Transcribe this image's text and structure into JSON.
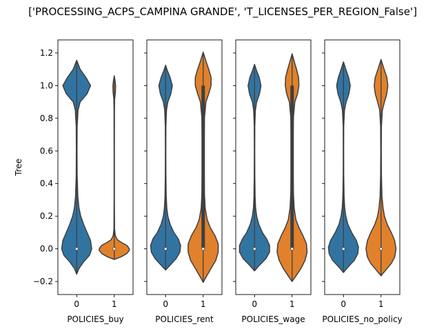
{
  "figure": {
    "title": "['PROCESSING_ACPS_CAMPINA GRANDE', 'T_LICENSES_PER_REGION_False']",
    "ylabel": "Tree"
  },
  "chart_data": {
    "type": "violin",
    "title": "['PROCESSING_ACPS_CAMPINA GRANDE', 'T_LICENSES_PER_REGION_False']",
    "ylabel": "Tree",
    "ylim": [
      -0.28,
      1.28
    ],
    "yticks": [
      -0.2,
      0.0,
      0.2,
      0.4,
      0.6,
      0.8,
      1.0,
      1.2
    ],
    "ytick_labels": [
      "−0.2",
      "0.0",
      "0.2",
      "0.4",
      "0.6",
      "0.8",
      "1.0",
      "1.2"
    ],
    "sharey": true,
    "colors": {
      "0": "#3274a1",
      "1": "#e1812c"
    },
    "panels": [
      {
        "xlabel": "POLICIES_buy",
        "categories": [
          "0",
          "1"
        ],
        "violins": [
          {
            "category": "0",
            "min": -0.155,
            "max": 1.155,
            "median": 0.0,
            "q1": 0.0,
            "q3": 0.0,
            "profile": [
              [
                -0.155,
                0.0
              ],
              [
                -0.12,
                0.02
              ],
              [
                -0.08,
                0.06
              ],
              [
                -0.04,
                0.11
              ],
              [
                0.0,
                0.13
              ],
              [
                0.05,
                0.12
              ],
              [
                0.1,
                0.09
              ],
              [
                0.15,
                0.06
              ],
              [
                0.2,
                0.035
              ],
              [
                0.25,
                0.02
              ],
              [
                0.32,
                0.01
              ],
              [
                0.45,
                0.004
              ],
              [
                0.6,
                0.003
              ],
              [
                0.75,
                0.004
              ],
              [
                0.85,
                0.012
              ],
              [
                0.9,
                0.03
              ],
              [
                0.95,
                0.09
              ],
              [
                1.0,
                0.12
              ],
              [
                1.05,
                0.08
              ],
              [
                1.1,
                0.03
              ],
              [
                1.155,
                0.0
              ]
            ]
          },
          {
            "category": "1",
            "min": -0.065,
            "max": 1.06,
            "median": 0.0,
            "q1": 0.0,
            "q3": 0.0,
            "profile": [
              [
                -0.065,
                0.0
              ],
              [
                -0.05,
                0.12
              ],
              [
                -0.03,
                0.23
              ],
              [
                -0.01,
                0.28
              ],
              [
                0.0,
                0.28
              ],
              [
                0.02,
                0.24
              ],
              [
                0.04,
                0.13
              ],
              [
                0.055,
                0.06
              ],
              [
                0.08,
                0.02
              ],
              [
                0.12,
                0.006
              ],
              [
                0.3,
                0.003
              ],
              [
                0.6,
                0.003
              ],
              [
                0.85,
                0.004
              ],
              [
                0.92,
                0.008
              ],
              [
                0.96,
                0.022
              ],
              [
                1.0,
                0.025
              ],
              [
                1.03,
                0.015
              ],
              [
                1.06,
                0.0
              ]
            ]
          }
        ]
      },
      {
        "xlabel": "POLICIES_rent",
        "categories": [
          "0",
          "1"
        ],
        "violins": [
          {
            "category": "0",
            "min": -0.13,
            "max": 1.125,
            "median": 0.0,
            "q1": 0.0,
            "q3": 0.0,
            "profile": [
              [
                -0.13,
                0.0
              ],
              [
                -0.1,
                0.06
              ],
              [
                -0.06,
                0.14
              ],
              [
                -0.02,
                0.19
              ],
              [
                0.02,
                0.2
              ],
              [
                0.06,
                0.17
              ],
              [
                0.1,
                0.11
              ],
              [
                0.15,
                0.06
              ],
              [
                0.2,
                0.03
              ],
              [
                0.25,
                0.016
              ],
              [
                0.32,
                0.008
              ],
              [
                0.45,
                0.004
              ],
              [
                0.6,
                0.003
              ],
              [
                0.75,
                0.004
              ],
              [
                0.85,
                0.012
              ],
              [
                0.9,
                0.03
              ],
              [
                0.95,
                0.07
              ],
              [
                1.0,
                0.09
              ],
              [
                1.05,
                0.06
              ],
              [
                1.09,
                0.025
              ],
              [
                1.125,
                0.0
              ]
            ]
          },
          {
            "category": "1",
            "min": -0.205,
            "max": 1.205,
            "median": 0.0,
            "q1": 0.0,
            "q3": 1.0,
            "profile": [
              [
                -0.205,
                0.0
              ],
              [
                -0.17,
                0.04
              ],
              [
                -0.12,
                0.1
              ],
              [
                -0.07,
                0.16
              ],
              [
                -0.02,
                0.19
              ],
              [
                0.03,
                0.19
              ],
              [
                0.08,
                0.15
              ],
              [
                0.13,
                0.09
              ],
              [
                0.18,
                0.05
              ],
              [
                0.25,
                0.025
              ],
              [
                0.35,
                0.015
              ],
              [
                0.5,
                0.012
              ],
              [
                0.65,
                0.012
              ],
              [
                0.8,
                0.016
              ],
              [
                0.9,
                0.035
              ],
              [
                0.95,
                0.07
              ],
              [
                1.0,
                0.1
              ],
              [
                1.05,
                0.1
              ],
              [
                1.1,
                0.07
              ],
              [
                1.15,
                0.035
              ],
              [
                1.205,
                0.0
              ]
            ]
          }
        ]
      },
      {
        "xlabel": "POLICIES_wage",
        "categories": [
          "0",
          "1"
        ],
        "violins": [
          {
            "category": "0",
            "min": -0.135,
            "max": 1.13,
            "median": 0.0,
            "q1": 0.0,
            "q3": 0.0,
            "profile": [
              [
                -0.135,
                0.0
              ],
              [
                -0.1,
                0.07
              ],
              [
                -0.06,
                0.16
              ],
              [
                -0.02,
                0.21
              ],
              [
                0.02,
                0.21
              ],
              [
                0.06,
                0.17
              ],
              [
                0.1,
                0.11
              ],
              [
                0.15,
                0.06
              ],
              [
                0.2,
                0.03
              ],
              [
                0.25,
                0.015
              ],
              [
                0.32,
                0.008
              ],
              [
                0.45,
                0.004
              ],
              [
                0.6,
                0.003
              ],
              [
                0.75,
                0.004
              ],
              [
                0.85,
                0.012
              ],
              [
                0.9,
                0.03
              ],
              [
                0.95,
                0.07
              ],
              [
                1.0,
                0.09
              ],
              [
                1.05,
                0.065
              ],
              [
                1.09,
                0.03
              ],
              [
                1.13,
                0.0
              ]
            ]
          },
          {
            "category": "1",
            "min": -0.2,
            "max": 1.195,
            "median": 0.0,
            "q1": 0.0,
            "q3": 1.0,
            "profile": [
              [
                -0.2,
                0.0
              ],
              [
                -0.17,
                0.05
              ],
              [
                -0.12,
                0.13
              ],
              [
                -0.07,
                0.19
              ],
              [
                -0.02,
                0.22
              ],
              [
                0.03,
                0.21
              ],
              [
                0.08,
                0.16
              ],
              [
                0.13,
                0.1
              ],
              [
                0.18,
                0.055
              ],
              [
                0.25,
                0.03
              ],
              [
                0.35,
                0.018
              ],
              [
                0.5,
                0.014
              ],
              [
                0.65,
                0.014
              ],
              [
                0.8,
                0.018
              ],
              [
                0.9,
                0.04
              ],
              [
                0.95,
                0.08
              ],
              [
                1.0,
                0.1
              ],
              [
                1.05,
                0.095
              ],
              [
                1.1,
                0.065
              ],
              [
                1.15,
                0.03
              ],
              [
                1.195,
                0.0
              ]
            ]
          }
        ]
      },
      {
        "xlabel": "POLICIES_no_policy",
        "categories": [
          "0",
          "1"
        ],
        "violins": [
          {
            "category": "0",
            "min": -0.145,
            "max": 1.145,
            "median": 0.0,
            "q1": 0.0,
            "q3": 0.0,
            "profile": [
              [
                -0.145,
                0.0
              ],
              [
                -0.11,
                0.07
              ],
              [
                -0.07,
                0.16
              ],
              [
                -0.03,
                0.21
              ],
              [
                0.01,
                0.22
              ],
              [
                0.05,
                0.19
              ],
              [
                0.1,
                0.12
              ],
              [
                0.15,
                0.065
              ],
              [
                0.2,
                0.035
              ],
              [
                0.25,
                0.018
              ],
              [
                0.32,
                0.009
              ],
              [
                0.45,
                0.004
              ],
              [
                0.6,
                0.003
              ],
              [
                0.75,
                0.004
              ],
              [
                0.85,
                0.015
              ],
              [
                0.9,
                0.04
              ],
              [
                0.95,
                0.08
              ],
              [
                1.0,
                0.1
              ],
              [
                1.05,
                0.075
              ],
              [
                1.1,
                0.035
              ],
              [
                1.145,
                0.0
              ]
            ]
          },
          {
            "category": "1",
            "min": -0.165,
            "max": 1.16,
            "median": 0.0,
            "q1": 0.0,
            "q3": 0.0,
            "profile": [
              [
                -0.165,
                0.0
              ],
              [
                -0.13,
                0.07
              ],
              [
                -0.09,
                0.15
              ],
              [
                -0.05,
                0.2
              ],
              [
                0.0,
                0.22
              ],
              [
                0.05,
                0.2
              ],
              [
                0.1,
                0.15
              ],
              [
                0.15,
                0.09
              ],
              [
                0.2,
                0.05
              ],
              [
                0.25,
                0.03
              ],
              [
                0.32,
                0.014
              ],
              [
                0.45,
                0.006
              ],
              [
                0.6,
                0.004
              ],
              [
                0.75,
                0.006
              ],
              [
                0.85,
                0.02
              ],
              [
                0.9,
                0.05
              ],
              [
                0.95,
                0.085
              ],
              [
                1.0,
                0.1
              ],
              [
                1.05,
                0.085
              ],
              [
                1.1,
                0.045
              ],
              [
                1.16,
                0.0
              ]
            ]
          }
        ]
      }
    ]
  }
}
